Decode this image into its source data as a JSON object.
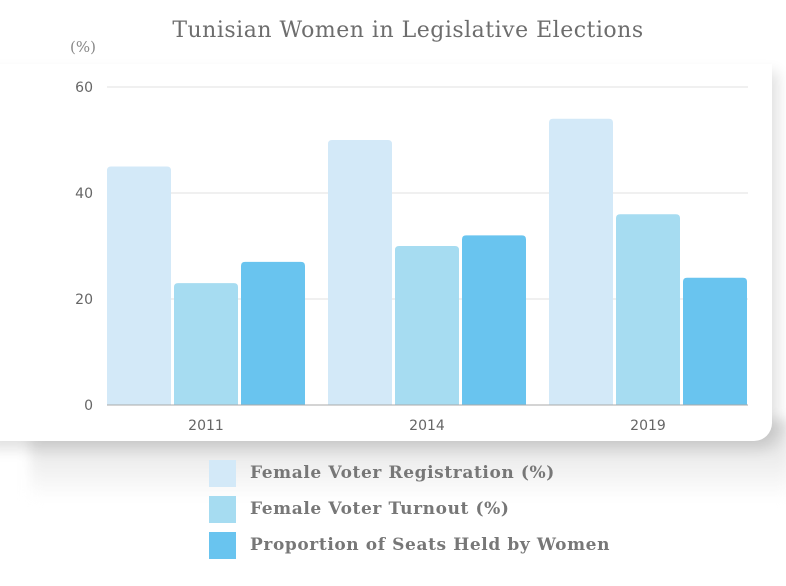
{
  "chart_data": {
    "type": "bar",
    "title": "Tunisian Women in Legislative Elections",
    "ylabel": "(%)",
    "xlabel": "",
    "ylim": [
      0,
      60
    ],
    "yticks": [
      0,
      20,
      40,
      60
    ],
    "grid": true,
    "legend_position": "bottom",
    "categories": [
      "2011",
      "2014",
      "2019"
    ],
    "series": [
      {
        "name": "Female Voter Registration (%)",
        "color": "#d3e9f8",
        "values": [
          45,
          50,
          54
        ]
      },
      {
        "name": "Female Voter Turnout (%)",
        "color": "#a6dcf1",
        "values": [
          23,
          30,
          36
        ]
      },
      {
        "name": "Proportion of Seats Held by Women",
        "color": "#69c4ef",
        "values": [
          27,
          32,
          24
        ]
      }
    ]
  }
}
